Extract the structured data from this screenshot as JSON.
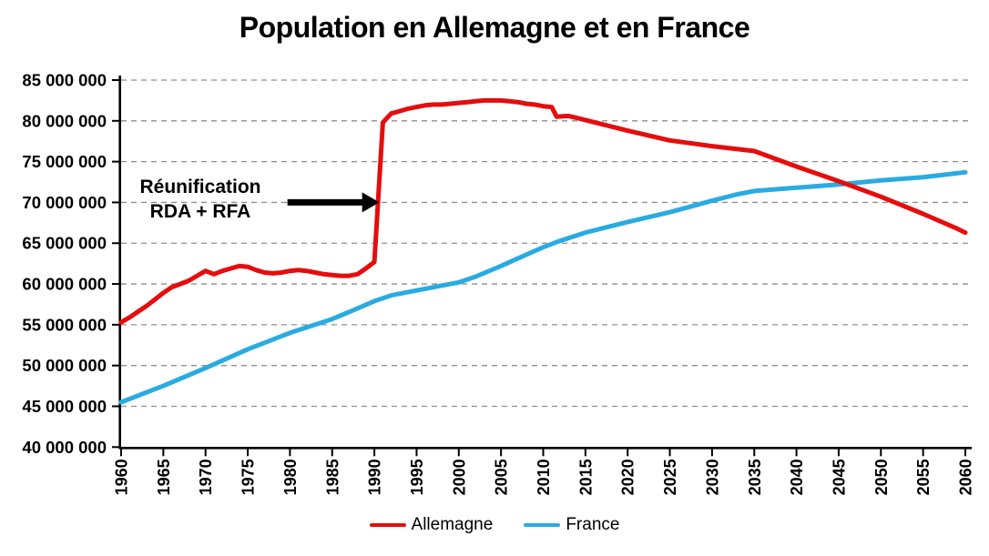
{
  "title": "Population en Allemagne et en France",
  "annotation": {
    "line1": "Réunification",
    "line2": "RDA + RFA"
  },
  "legend": {
    "items": [
      {
        "label": "Allemagne",
        "color": "#E50D0D"
      },
      {
        "label": "France",
        "color": "#29ABE2"
      }
    ]
  },
  "colors": {
    "allemagne": "#E50D0D",
    "france": "#29ABE2",
    "grid": "#8F8F8F",
    "axis": "#000000",
    "arrow": "#000000",
    "background": "#FFFFFF"
  },
  "chart_data": {
    "type": "line",
    "title": "Population en Allemagne et en France",
    "xlabel": "",
    "ylabel": "",
    "xlim": [
      1960,
      2060
    ],
    "ylim_millions": [
      40,
      85
    ],
    "grid": "horizontal dashed",
    "legend_position": "bottom center",
    "x_ticks": [
      1960,
      1965,
      1970,
      1975,
      1980,
      1985,
      1990,
      1995,
      2000,
      2005,
      2010,
      2015,
      2020,
      2025,
      2030,
      2035,
      2040,
      2045,
      2050,
      2055,
      2060
    ],
    "x_tick_labels": [
      "1960",
      "1965",
      "1970",
      "1975",
      "1980",
      "1985",
      "1990",
      "1995",
      "2000",
      "2005",
      "2010",
      "2015",
      "2020",
      "2025",
      "2030",
      "2035",
      "2040",
      "2045",
      "2050",
      "2055",
      "2060"
    ],
    "y_ticks_millions": [
      40,
      45,
      50,
      55,
      60,
      65,
      70,
      75,
      80,
      85
    ],
    "y_tick_labels": [
      "40 000 000",
      "45 000 000",
      "50 000 000",
      "55 000 000",
      "60 000 000",
      "65 000 000",
      "70 000 000",
      "75 000 000",
      "80 000 000",
      "85 000 000"
    ],
    "annotation": {
      "text": "Réunification RDA + RFA",
      "arrow_tail_year": 1979.7,
      "arrow_points_to": {
        "year": 1990.6,
        "value_millions": 70
      }
    },
    "series": [
      {
        "name": "Allemagne",
        "color": "#E50D0D",
        "points_year_millions": [
          [
            1960,
            55.3
          ],
          [
            1961,
            55.9
          ],
          [
            1962,
            56.6
          ],
          [
            1963,
            57.3
          ],
          [
            1964,
            58.1
          ],
          [
            1965,
            58.9
          ],
          [
            1966,
            59.6
          ],
          [
            1967,
            60.0
          ],
          [
            1968,
            60.4
          ],
          [
            1969,
            61.0
          ],
          [
            1970,
            61.6
          ],
          [
            1971,
            61.2
          ],
          [
            1972,
            61.6
          ],
          [
            1973,
            61.9
          ],
          [
            1974,
            62.2
          ],
          [
            1975,
            62.1
          ],
          [
            1976,
            61.7
          ],
          [
            1977,
            61.4
          ],
          [
            1978,
            61.3
          ],
          [
            1979,
            61.4
          ],
          [
            1980,
            61.6
          ],
          [
            1981,
            61.7
          ],
          [
            1982,
            61.6
          ],
          [
            1983,
            61.4
          ],
          [
            1984,
            61.2
          ],
          [
            1985,
            61.1
          ],
          [
            1986,
            61.0
          ],
          [
            1987,
            61.0
          ],
          [
            1988,
            61.2
          ],
          [
            1989,
            61.9
          ],
          [
            1990,
            62.7
          ],
          [
            1991,
            79.8
          ],
          [
            1992,
            80.9
          ],
          [
            1993,
            81.2
          ],
          [
            1994,
            81.5
          ],
          [
            1995,
            81.7
          ],
          [
            1996,
            81.9
          ],
          [
            1997,
            82.0
          ],
          [
            1998,
            82.0
          ],
          [
            1999,
            82.1
          ],
          [
            2000,
            82.2
          ],
          [
            2001,
            82.3
          ],
          [
            2002,
            82.4
          ],
          [
            2003,
            82.5
          ],
          [
            2004,
            82.5
          ],
          [
            2005,
            82.5
          ],
          [
            2006,
            82.4
          ],
          [
            2007,
            82.3
          ],
          [
            2008,
            82.1
          ],
          [
            2009,
            82.0
          ],
          [
            2010,
            81.8
          ],
          [
            2011,
            81.7
          ],
          [
            2011.6,
            80.5
          ],
          [
            2013,
            80.6
          ],
          [
            2015,
            80.1
          ],
          [
            2020,
            78.8
          ],
          [
            2025,
            77.6
          ],
          [
            2030,
            76.9
          ],
          [
            2035,
            76.3
          ],
          [
            2040,
            74.4
          ],
          [
            2045,
            72.6
          ],
          [
            2050,
            70.7
          ],
          [
            2055,
            68.6
          ],
          [
            2059,
            66.8
          ],
          [
            2060,
            66.3
          ]
        ]
      },
      {
        "name": "France",
        "color": "#29ABE2",
        "points_year_millions": [
          [
            1960,
            45.5
          ],
          [
            1965,
            47.5
          ],
          [
            1970,
            49.7
          ],
          [
            1975,
            52.0
          ],
          [
            1980,
            54.0
          ],
          [
            1985,
            55.7
          ],
          [
            1988,
            57.0
          ],
          [
            1990,
            57.9
          ],
          [
            1992,
            58.6
          ],
          [
            1995,
            59.2
          ],
          [
            1998,
            59.8
          ],
          [
            2000,
            60.2
          ],
          [
            2002,
            60.9
          ],
          [
            2005,
            62.2
          ],
          [
            2008,
            63.6
          ],
          [
            2010,
            64.5
          ],
          [
            2012,
            65.3
          ],
          [
            2015,
            66.3
          ],
          [
            2020,
            67.6
          ],
          [
            2025,
            68.8
          ],
          [
            2030,
            70.2
          ],
          [
            2033,
            71.0
          ],
          [
            2035,
            71.4
          ],
          [
            2040,
            71.8
          ],
          [
            2045,
            72.2
          ],
          [
            2050,
            72.7
          ],
          [
            2055,
            73.1
          ],
          [
            2060,
            73.7
          ]
        ]
      }
    ]
  }
}
